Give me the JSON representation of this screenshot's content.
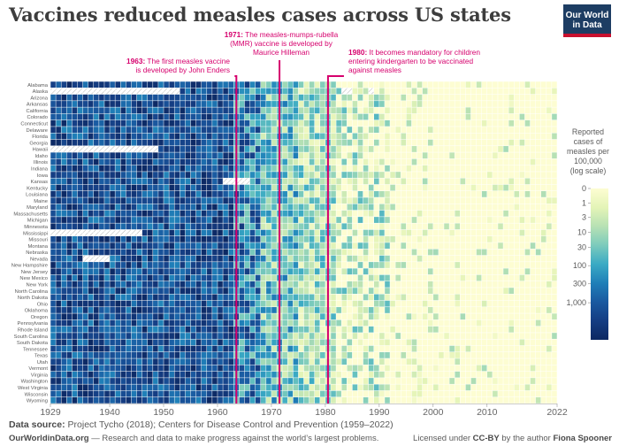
{
  "title": "Vaccines reduced measles cases across US states",
  "logo": {
    "line1": "Our World",
    "line2": "in Data"
  },
  "footer": {
    "source_label": "Data source:",
    "source_text": "Project Tycho (2018); Centers for Disease Control and Prevention (1959–2022)",
    "site": "OurWorldinData.org",
    "site_text": "— Research and data to make progress against the world’s largest problems.",
    "license_prefix": "Licensed under",
    "license": "CC-BY",
    "license_mid": "by the author",
    "author": "Fiona Spooner"
  },
  "chart_data": {
    "type": "heatmap",
    "x_range": [
      1929,
      2022
    ],
    "x_ticks": [
      1929,
      1940,
      1950,
      1960,
      1970,
      1980,
      1990,
      2000,
      2010,
      2022
    ],
    "rows": [
      "Alabama",
      "Alaska",
      "Arizona",
      "Arkansas",
      "California",
      "Colorado",
      "Connecticut",
      "Delaware",
      "Florida",
      "Georgia",
      "Hawaii",
      "Idaho",
      "Illinois",
      "Indiana",
      "Iowa",
      "Kansas",
      "Kentucky",
      "Louisiana",
      "Maine",
      "Maryland",
      "Massachusetts",
      "Michigan",
      "Minnesota",
      "Mississippi",
      "Missouri",
      "Montana",
      "Nebraska",
      "Nevada",
      "New Hampshire",
      "New Jersey",
      "New Mexico",
      "New York",
      "North Carolina",
      "North Dakota",
      "Ohio",
      "Oklahoma",
      "Oregon",
      "Pennsylvania",
      "Rhode Island",
      "South Carolina",
      "South Dakota",
      "Tennessee",
      "Texas",
      "Utah",
      "Vermont",
      "Virginia",
      "Washington",
      "West Virginia",
      "Wisconsin",
      "Wyoming"
    ],
    "missing_data": [
      {
        "state": "Alaska",
        "from": 1929,
        "to": 1952
      },
      {
        "state": "Alaska",
        "from": 1983,
        "to": 1984
      },
      {
        "state": "Alaska",
        "from": 1988,
        "to": 1988
      },
      {
        "state": "Hawaii",
        "from": 1929,
        "to": 1948
      },
      {
        "state": "Kansas",
        "from": 1961,
        "to": 1965
      },
      {
        "state": "Mississippi",
        "from": 1929,
        "to": 1945
      },
      {
        "state": "Nevada",
        "from": 1935,
        "to": 1939
      }
    ],
    "trend_note": "Very high incidence (100–1,000+ per 100,000) until the mid-1960s, falling to 1–30 around 1970–1990 and mostly near 0 after 1995",
    "legend": {
      "title": "Reported cases of measles per 100,000 (log scale)",
      "ticks": [
        "0",
        "1",
        "3",
        "10",
        "30",
        "100",
        "300",
        "1,000"
      ],
      "colors": [
        "#fdfdd2",
        "#e4f4b7",
        "#b7e1b4",
        "#7ccbbc",
        "#3aaac4",
        "#1f7fb8",
        "#1a59a0",
        "#153d83",
        "#0c2862"
      ]
    },
    "annotations": [
      {
        "year": 1963,
        "text": "1963: The first measles vaccine is developed by John Enders",
        "color": "#d6006d"
      },
      {
        "year": 1971,
        "text": "1971: The measles-mumps-rubella (MMR) vaccine is developed by Maurice Hilleman",
        "color": "#d6006d"
      },
      {
        "year": 1980,
        "text": "1980: It becomes mandatory for children entering kindergarten to be vaccinated against measles",
        "color": "#d6006d"
      }
    ]
  }
}
